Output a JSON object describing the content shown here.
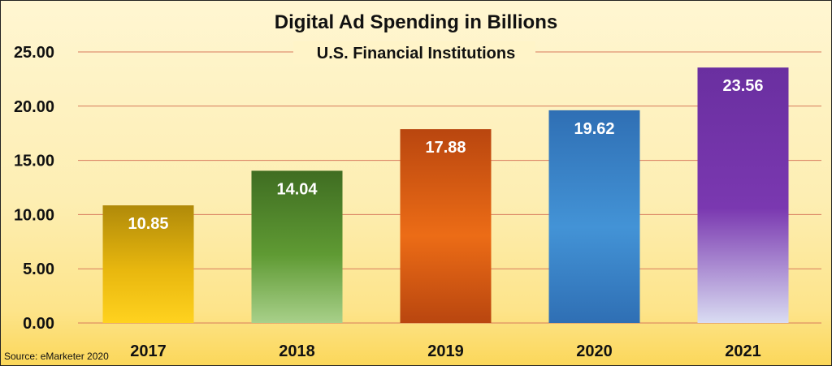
{
  "chart_data": {
    "type": "bar",
    "title": "Digital Ad Spending in Billions",
    "subtitle": "U.S. Financial Institutions",
    "categories": [
      "2017",
      "2018",
      "2019",
      "2020",
      "2021"
    ],
    "values": [
      10.85,
      14.04,
      17.88,
      19.62,
      23.56
    ],
    "value_labels": [
      "10.85",
      "14.04",
      "17.88",
      "19.62",
      "23.56"
    ],
    "ylim": [
      0,
      25
    ],
    "yticks": [
      "0.00",
      "5.00",
      "10.00",
      "15.00",
      "20.00",
      "25.00"
    ],
    "xlabel": "",
    "ylabel": "",
    "grid": true,
    "legend": "none",
    "bar_colors": [
      {
        "top": "#b08a0a",
        "mid": "#e8b70e",
        "bottom": "#ffd21f"
      },
      {
        "top": "#3f6d22",
        "mid": "#5f9a33",
        "bottom": "#a8d08a"
      },
      {
        "top": "#b9460f",
        "mid": "#ec6c16",
        "bottom": "#b9460f"
      },
      {
        "top": "#2f6fb4",
        "mid": "#4393d6",
        "bottom": "#2f6fb4"
      },
      {
        "top": "#6a2fa0",
        "mid": "#7a38b0",
        "bottom": "#d9dcf2"
      }
    ],
    "gridline_color": "#d77a5c"
  },
  "source": "Source: eMarketer 2020"
}
